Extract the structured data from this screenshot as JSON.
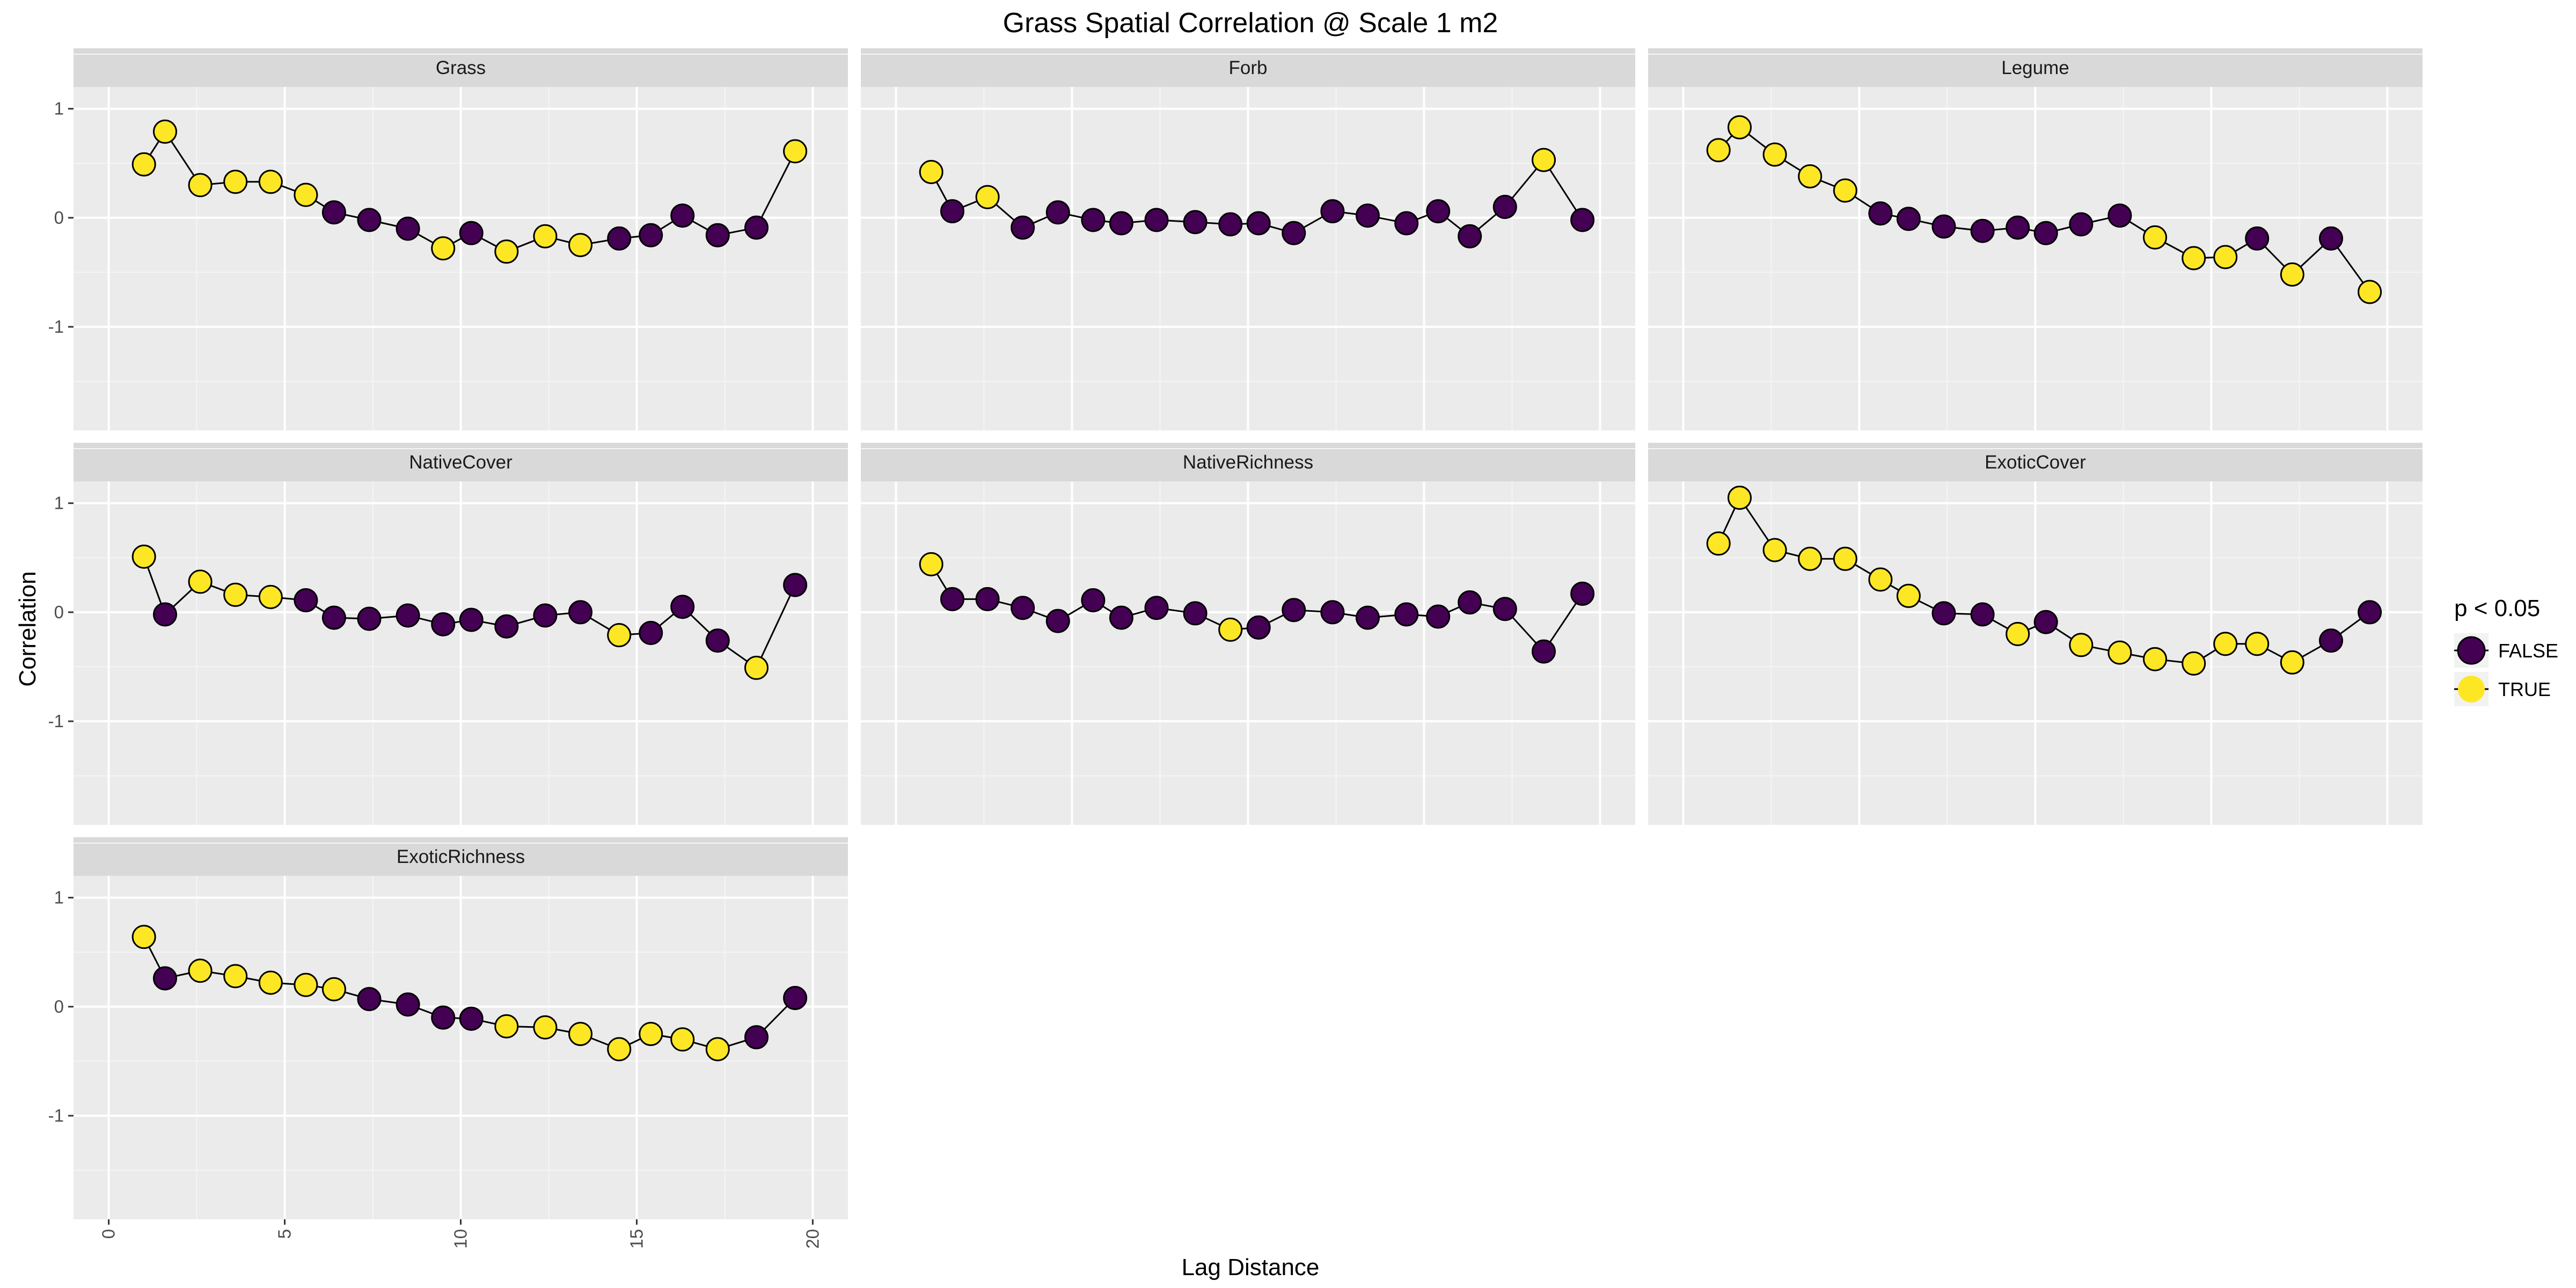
{
  "colors": {
    "false_fill": "#440154",
    "true_fill": "#FDE725",
    "panel_bg": "#EBEBEB",
    "strip_bg": "#D9D9D9",
    "grid_major": "#FFFFFF",
    "line": "#000000"
  },
  "chart_data": {
    "type": "scatter",
    "title": "Grass Spatial Correlation @ Scale 1 m2",
    "xlabel": "Lag Distance",
    "ylabel": "Correlation",
    "xlim": [
      -1,
      21
    ],
    "ylim": [
      -1.95,
      1.2
    ],
    "x_ticks": [
      0,
      5,
      10,
      15,
      20
    ],
    "x_tick_labels": [
      "0",
      "5",
      "10",
      "15",
      "20"
    ],
    "y_ticks": [
      1,
      0,
      -1
    ],
    "y_tick_labels": [
      "1",
      "0",
      "-1"
    ],
    "grid": true,
    "legend": {
      "title": "p < 0.05",
      "position": "right",
      "entries": [
        {
          "label": "FALSE",
          "color": "#440154"
        },
        {
          "label": "TRUE",
          "color": "#FDE725"
        }
      ]
    },
    "x": [
      1.0,
      1.6,
      2.6,
      3.6,
      4.6,
      5.6,
      6.4,
      7.4,
      8.5,
      9.5,
      10.3,
      11.3,
      12.4,
      13.4,
      14.5,
      15.4,
      16.3,
      17.3,
      18.4,
      19.5
    ],
    "panels": [
      {
        "name": "Grass",
        "y": [
          0.49,
          0.79,
          0.3,
          0.33,
          0.33,
          0.21,
          0.05,
          -0.02,
          -0.1,
          -0.28,
          -0.14,
          -0.31,
          -0.17,
          -0.25,
          -0.19,
          -0.16,
          0.02,
          -0.16,
          -0.09,
          0.61
        ],
        "sig": [
          true,
          true,
          true,
          true,
          true,
          true,
          false,
          false,
          false,
          true,
          false,
          true,
          true,
          true,
          false,
          false,
          false,
          false,
          false,
          true
        ]
      },
      {
        "name": "Forb",
        "y": [
          0.42,
          0.06,
          0.19,
          -0.09,
          0.05,
          -0.02,
          -0.05,
          -0.02,
          -0.04,
          -0.06,
          -0.05,
          -0.14,
          0.06,
          0.02,
          -0.05,
          0.06,
          -0.17,
          0.1,
          0.53,
          -0.02
        ],
        "sig": [
          true,
          false,
          true,
          false,
          false,
          false,
          false,
          false,
          false,
          false,
          false,
          false,
          false,
          false,
          false,
          false,
          false,
          false,
          true,
          false
        ]
      },
      {
        "name": "Legume",
        "y": [
          0.62,
          0.83,
          0.58,
          0.38,
          0.25,
          0.04,
          -0.01,
          -0.08,
          -0.12,
          -0.09,
          -0.14,
          -0.06,
          0.02,
          -0.18,
          -0.37,
          -0.36,
          -0.19,
          -0.52,
          -0.19,
          -0.68
        ],
        "sig": [
          true,
          true,
          true,
          true,
          true,
          false,
          false,
          false,
          false,
          false,
          false,
          false,
          false,
          true,
          true,
          true,
          false,
          true,
          false,
          true
        ]
      },
      {
        "name": "NativeCover",
        "y": [
          0.51,
          -0.02,
          0.28,
          0.16,
          0.14,
          0.11,
          -0.05,
          -0.06,
          -0.03,
          -0.11,
          -0.07,
          -0.13,
          -0.03,
          0.0,
          -0.21,
          -0.19,
          0.05,
          -0.26,
          -0.51,
          0.25
        ],
        "sig": [
          true,
          false,
          true,
          true,
          true,
          false,
          false,
          false,
          false,
          false,
          false,
          false,
          false,
          false,
          true,
          false,
          false,
          false,
          true,
          false
        ]
      },
      {
        "name": "NativeRichness",
        "y": [
          0.44,
          0.12,
          0.12,
          0.04,
          -0.08,
          0.11,
          -0.05,
          0.04,
          -0.01,
          -0.16,
          -0.14,
          0.02,
          0.0,
          -0.05,
          -0.02,
          -0.04,
          0.09,
          0.03,
          -0.36,
          0.17
        ],
        "sig": [
          true,
          false,
          false,
          false,
          false,
          false,
          false,
          false,
          false,
          true,
          false,
          false,
          false,
          false,
          false,
          false,
          false,
          false,
          false,
          false
        ]
      },
      {
        "name": "ExoticCover",
        "y": [
          0.63,
          1.05,
          0.57,
          0.49,
          0.49,
          0.3,
          0.15,
          -0.01,
          -0.02,
          -0.2,
          -0.09,
          -0.3,
          -0.37,
          -0.43,
          -0.47,
          -0.29,
          -0.29,
          -0.46,
          -0.26,
          0.0
        ],
        "sig": [
          true,
          true,
          true,
          true,
          true,
          true,
          true,
          false,
          false,
          true,
          false,
          true,
          true,
          true,
          true,
          true,
          true,
          true,
          false,
          false
        ]
      },
      {
        "name": "ExoticRichness",
        "y": [
          0.64,
          0.26,
          0.33,
          0.28,
          0.22,
          0.2,
          0.16,
          0.07,
          0.02,
          -0.1,
          -0.11,
          -0.18,
          -0.19,
          -0.25,
          -0.39,
          -0.25,
          -0.3,
          -0.39,
          -0.28,
          0.08
        ],
        "sig": [
          true,
          false,
          true,
          true,
          true,
          true,
          true,
          false,
          false,
          false,
          false,
          true,
          true,
          true,
          true,
          true,
          true,
          true,
          false,
          false
        ]
      }
    ]
  }
}
